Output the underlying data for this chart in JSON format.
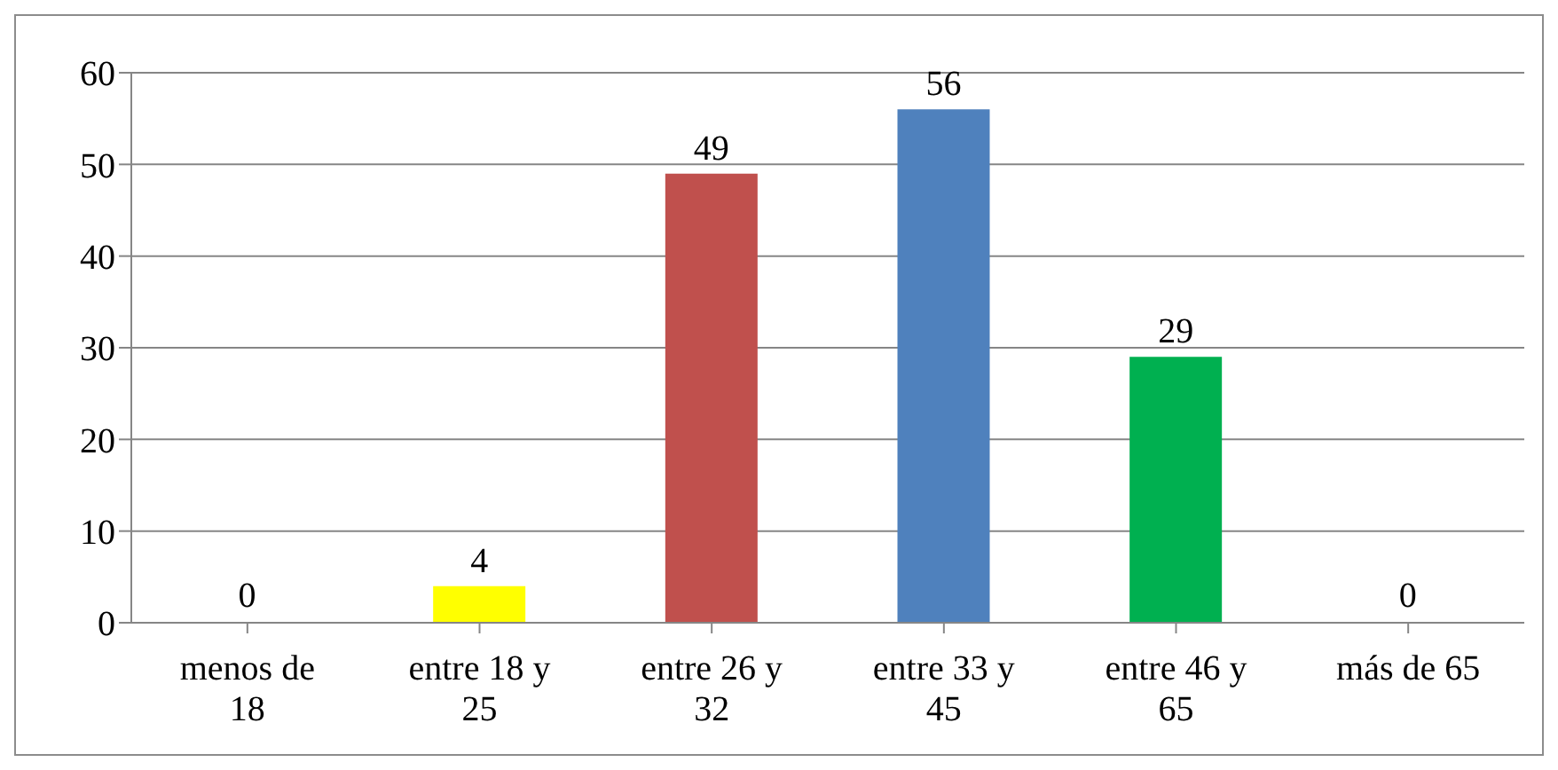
{
  "chart_data": {
    "type": "bar",
    "categories": [
      "menos de 18",
      "entre 18 y 25",
      "entre 26 y 32",
      "entre 33 y 45",
      "entre 46 y 65",
      "más de 65"
    ],
    "values": [
      0,
      4,
      49,
      56,
      29,
      0
    ],
    "colors": [
      null,
      "#ffff00",
      "#c0504d",
      "#4f81bd",
      "#00b050",
      null
    ],
    "ylim": [
      0,
      60
    ],
    "yticks": [
      0,
      10,
      20,
      30,
      40,
      50,
      60
    ],
    "grid": "y",
    "data_labels": true,
    "legend": false
  }
}
